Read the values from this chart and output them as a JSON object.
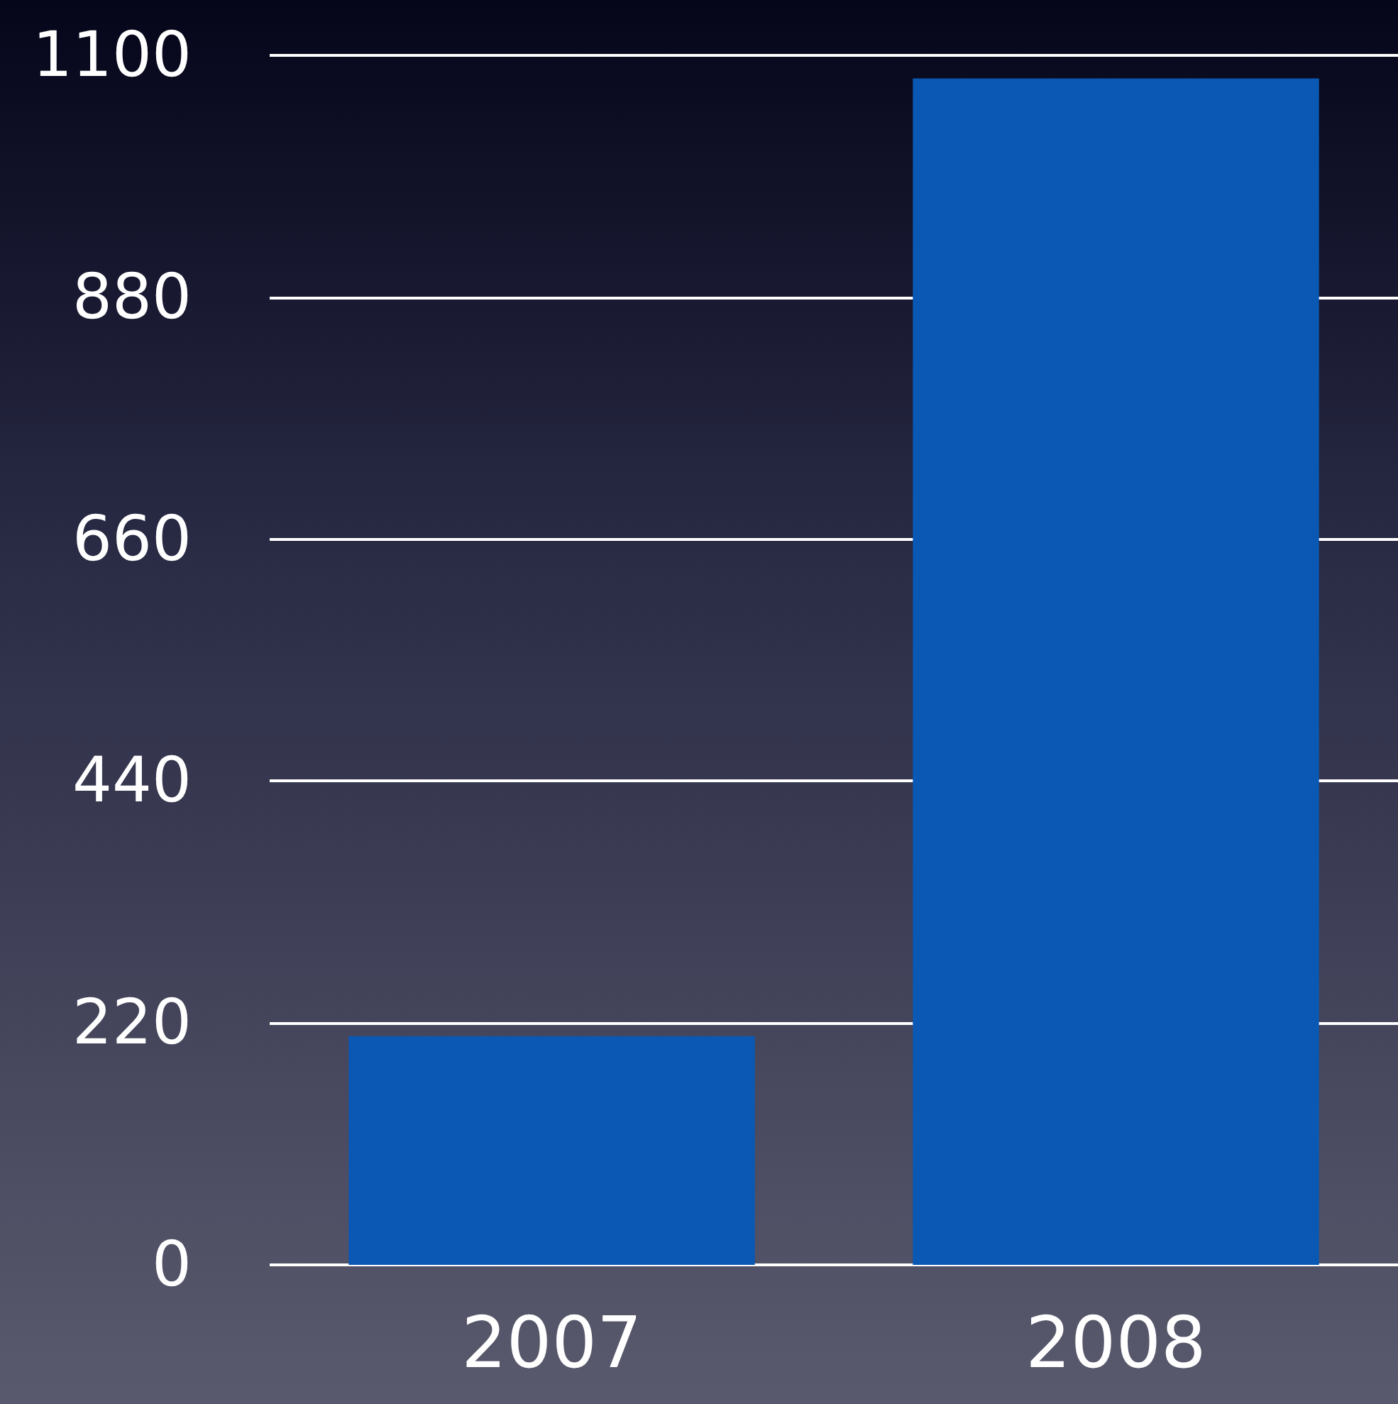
{
  "chart_data": {
    "type": "bar",
    "categories": [
      "2007",
      "2008"
    ],
    "series": [
      {
        "color": "#0a58b4",
        "values": [
          208,
          1079
        ]
      }
    ],
    "ylim": [
      0,
      1100
    ],
    "yticks": [
      0,
      220,
      440,
      660,
      880,
      1100
    ],
    "grid": "y"
  }
}
